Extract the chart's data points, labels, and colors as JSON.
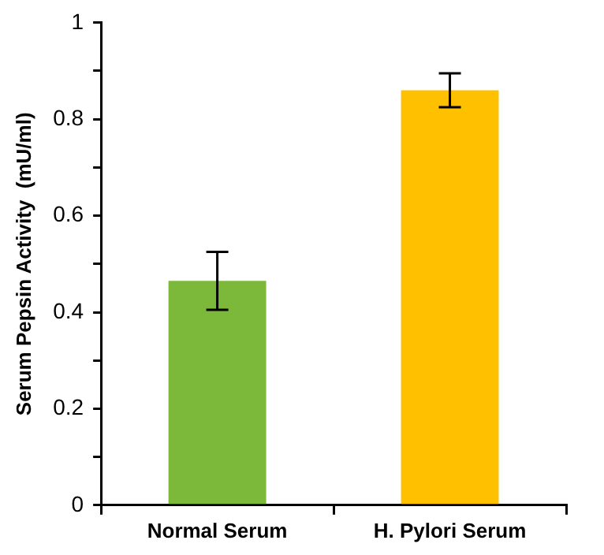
{
  "chart_data": {
    "type": "bar",
    "ylabel": "Serum Pepsin Activity  (mU/ml)",
    "categories": [
      "Normal Serum",
      "H. Pylori Serum"
    ],
    "values": [
      0.465,
      0.86
    ],
    "colors": [
      "#7cb83a",
      "#ffc000"
    ],
    "errors": [
      0.06,
      0.035
    ],
    "ylim": [
      0,
      1
    ],
    "yticks": [
      0,
      {
        "value": 0.1,
        "label": null
      },
      0.2,
      {
        "value": 0.3,
        "label": null
      },
      0.4,
      {
        "value": 0.5,
        "label": null
      },
      0.6,
      {
        "value": 0.7,
        "label": null
      },
      0.8,
      {
        "value": 0.9,
        "label": null
      },
      1
    ],
    "grid": false,
    "legend": false
  }
}
